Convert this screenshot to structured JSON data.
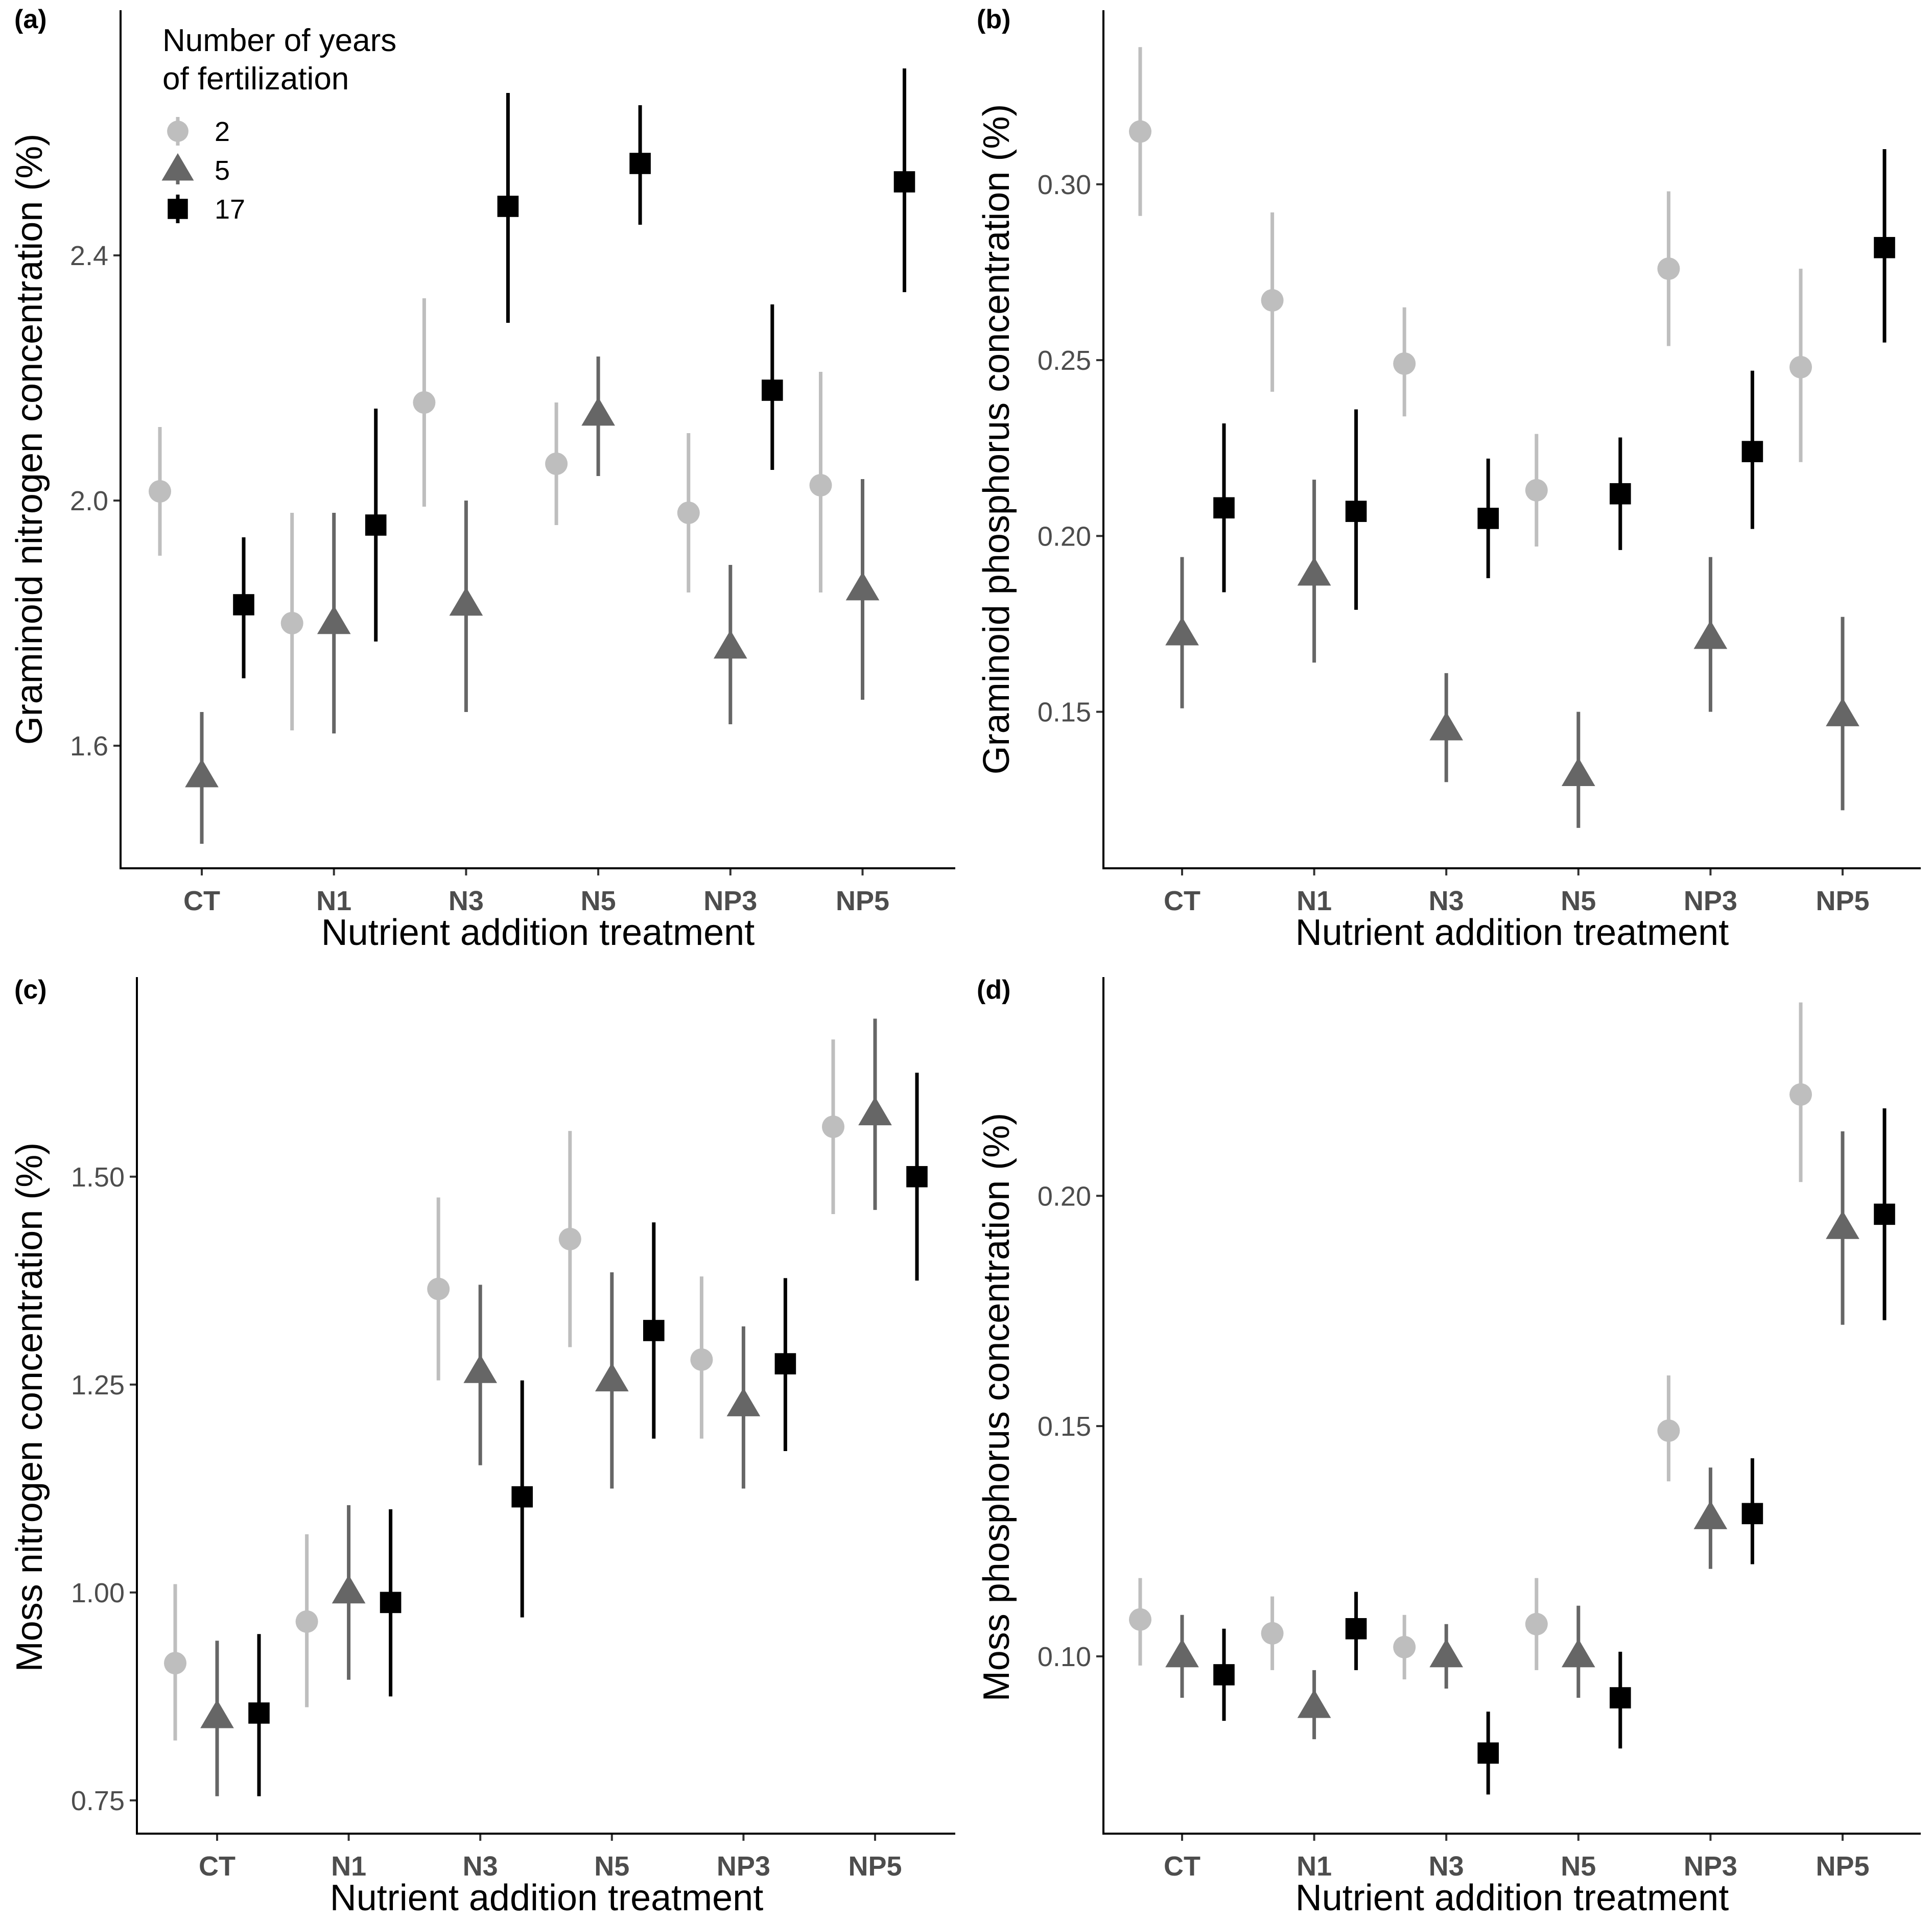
{
  "legend": {
    "title_line1": "Number of years",
    "title_line2": "of fertilization",
    "entries": [
      {
        "label": "2",
        "color": "#bebebe",
        "shape": "circle"
      },
      {
        "label": "5",
        "color": "#666666",
        "shape": "triangle"
      },
      {
        "label": "17",
        "color": "#000000",
        "shape": "square"
      }
    ]
  },
  "chart_data": [
    {
      "panel": "(a)",
      "type": "scatter",
      "xlabel": "Nutrient addition treatment",
      "ylabel": "Graminoid nitrogen concentration (%)",
      "categories": [
        "CT",
        "N1",
        "N3",
        "N5",
        "NP3",
        "NP5"
      ],
      "ylim": [
        1.4,
        2.8
      ],
      "yticks": [
        1.6,
        2.0,
        2.4
      ],
      "ytick_labels": [
        "1.6",
        "2.0",
        "2.4"
      ],
      "series": [
        {
          "name": "2",
          "values": [
            2.015,
            1.8,
            2.16,
            2.06,
            1.98,
            2.025
          ],
          "lower": [
            1.91,
            1.625,
            1.99,
            1.96,
            1.85,
            1.85
          ],
          "upper": [
            2.12,
            1.98,
            2.33,
            2.16,
            2.11,
            2.21
          ]
        },
        {
          "name": "5",
          "values": [
            1.55,
            1.8,
            1.83,
            2.14,
            1.76,
            1.855
          ],
          "lower": [
            1.44,
            1.62,
            1.655,
            2.04,
            1.635,
            1.675
          ],
          "upper": [
            1.655,
            1.98,
            2.0,
            2.235,
            1.895,
            2.035
          ]
        },
        {
          "name": "17",
          "values": [
            1.83,
            1.96,
            2.48,
            2.55,
            2.18,
            2.52
          ],
          "lower": [
            1.71,
            1.77,
            2.29,
            2.45,
            2.05,
            2.34
          ],
          "upper": [
            1.94,
            2.15,
            2.665,
            2.645,
            2.32,
            2.705
          ]
        }
      ]
    },
    {
      "panel": "(b)",
      "type": "scatter",
      "xlabel": "Nutrient addition treatment",
      "ylabel": "Graminoid phosphorus concentration (%)",
      "categories": [
        "CT",
        "N1",
        "N3",
        "N5",
        "NP3",
        "NP5"
      ],
      "ylim": [
        0.1055,
        0.3495
      ],
      "yticks": [
        0.15,
        0.2,
        0.25,
        0.3
      ],
      "ytick_labels": [
        "0.15",
        "0.20",
        "0.25",
        "0.30"
      ],
      "series": [
        {
          "name": "2",
          "values": [
            0.315,
            0.267,
            0.249,
            0.213,
            0.276,
            0.248
          ],
          "lower": [
            0.291,
            0.241,
            0.234,
            0.197,
            0.254,
            0.221
          ],
          "upper": [
            0.339,
            0.292,
            0.265,
            0.229,
            0.298,
            0.276
          ]
        },
        {
          "name": "5",
          "values": [
            0.172,
            0.189,
            0.145,
            0.132,
            0.171,
            0.149
          ],
          "lower": [
            0.151,
            0.164,
            0.13,
            0.117,
            0.15,
            0.122
          ],
          "upper": [
            0.194,
            0.216,
            0.161,
            0.15,
            0.194,
            0.177
          ]
        },
        {
          "name": "17",
          "values": [
            0.208,
            0.207,
            0.205,
            0.212,
            0.224,
            0.282
          ],
          "lower": [
            0.184,
            0.179,
            0.188,
            0.196,
            0.202,
            0.255
          ],
          "upper": [
            0.232,
            0.236,
            0.222,
            0.228,
            0.247,
            0.31
          ]
        }
      ]
    },
    {
      "panel": "(c)",
      "type": "scatter",
      "xlabel": "Nutrient addition treatment",
      "ylabel": "Moss nitrogen concentration (%)",
      "categories": [
        "CT",
        "N1",
        "N3",
        "N5",
        "NP3",
        "NP5"
      ],
      "ylim": [
        0.71,
        1.74
      ],
      "yticks": [
        0.75,
        1.0,
        1.25,
        1.5
      ],
      "ytick_labels": [
        "0.75",
        "1.00",
        "1.25",
        "1.50"
      ],
      "series": [
        {
          "name": "2",
          "values": [
            0.915,
            0.965,
            1.365,
            1.425,
            1.28,
            1.56
          ],
          "lower": [
            0.822,
            0.862,
            1.255,
            1.295,
            1.185,
            1.455
          ],
          "upper": [
            1.01,
            1.07,
            1.475,
            1.555,
            1.38,
            1.665
          ]
        },
        {
          "name": "5",
          "values": [
            0.85,
            1.0,
            1.265,
            1.255,
            1.225,
            1.575
          ],
          "lower": [
            0.755,
            0.895,
            1.153,
            1.125,
            1.125,
            1.46
          ],
          "upper": [
            0.942,
            1.105,
            1.37,
            1.385,
            1.32,
            1.69
          ]
        },
        {
          "name": "17",
          "values": [
            0.855,
            0.988,
            1.115,
            1.315,
            1.275,
            1.5
          ],
          "lower": [
            0.755,
            0.875,
            0.97,
            1.185,
            1.17,
            1.375
          ],
          "upper": [
            0.95,
            1.1,
            1.255,
            1.445,
            1.378,
            1.625
          ]
        }
      ]
    },
    {
      "panel": "(d)",
      "type": "scatter",
      "xlabel": "Nutrient addition treatment",
      "ylabel": "Moss phosphorus concentration (%)",
      "categories": [
        "CT",
        "N1",
        "N3",
        "N5",
        "NP3",
        "NP5"
      ],
      "ylim": [
        0.0615,
        0.2475
      ],
      "yticks": [
        0.1,
        0.15,
        0.2
      ],
      "ytick_labels": [
        "0.10",
        "0.15",
        "0.20"
      ],
      "series": [
        {
          "name": "2",
          "values": [
            0.108,
            0.105,
            0.102,
            0.107,
            0.149,
            0.222
          ],
          "lower": [
            0.098,
            0.097,
            0.095,
            0.097,
            0.138,
            0.203
          ],
          "upper": [
            0.117,
            0.113,
            0.109,
            0.117,
            0.161,
            0.242
          ]
        },
        {
          "name": "5",
          "values": [
            0.1,
            0.089,
            0.1,
            0.1,
            0.13,
            0.193
          ],
          "lower": [
            0.091,
            0.082,
            0.093,
            0.091,
            0.119,
            0.172
          ],
          "upper": [
            0.109,
            0.097,
            0.107,
            0.111,
            0.141,
            0.214
          ]
        },
        {
          "name": "17",
          "values": [
            0.096,
            0.106,
            0.079,
            0.091,
            0.131,
            0.196
          ],
          "lower": [
            0.086,
            0.097,
            0.07,
            0.08,
            0.12,
            0.173
          ],
          "upper": [
            0.106,
            0.114,
            0.088,
            0.101,
            0.143,
            0.219
          ]
        }
      ]
    }
  ]
}
